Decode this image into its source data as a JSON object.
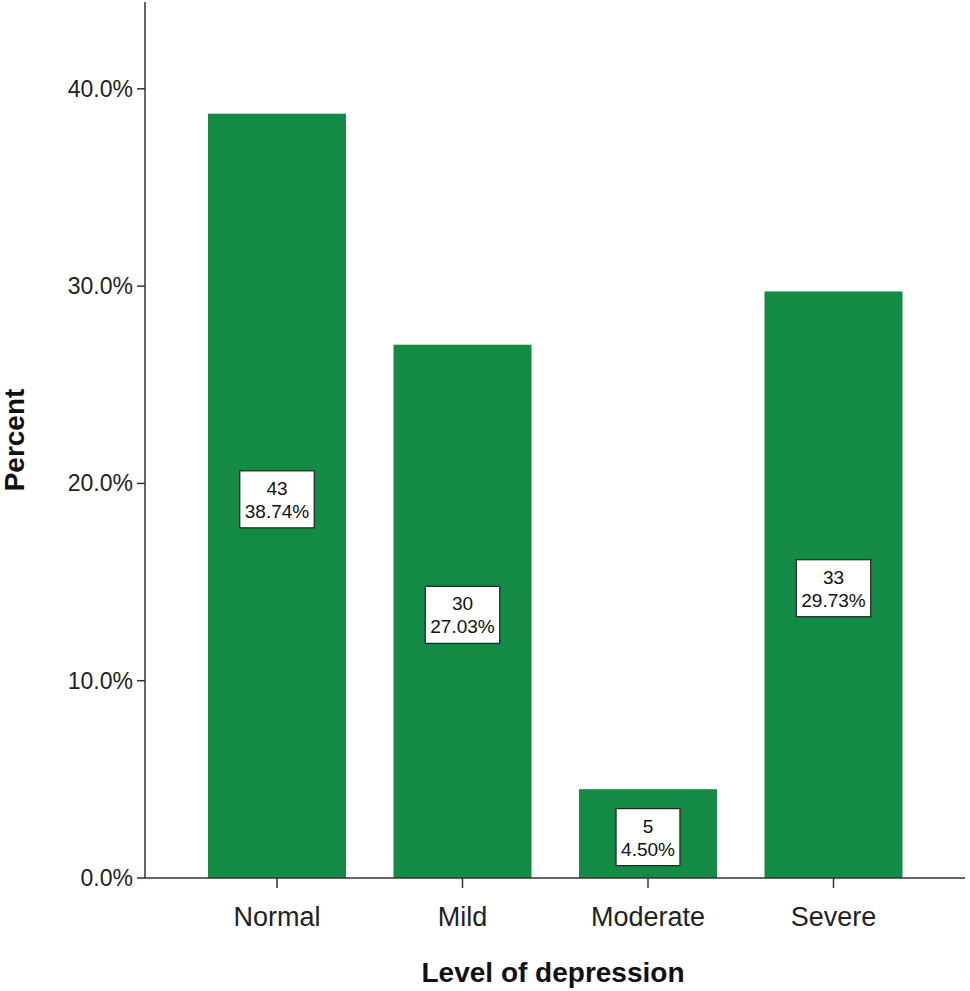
{
  "chart_data": {
    "type": "bar",
    "x_label": "Level of depression",
    "y_label": "Percent",
    "categories": [
      "Normal",
      "Mild",
      "Moderate",
      "Severe"
    ],
    "values": [
      38.74,
      27.03,
      4.5,
      29.73
    ],
    "value_labels": [
      "38.74%",
      "27.03%",
      "4.50%",
      "29.73%"
    ],
    "counts": [
      43,
      30,
      5,
      33
    ],
    "color": "#138b45",
    "ylim": [
      0,
      44.4
    ],
    "yticks": [
      {
        "value": 0,
        "label": "0.0%"
      },
      {
        "value": 10,
        "label": "10.0%"
      },
      {
        "value": 20,
        "label": "20.0%"
      },
      {
        "value": 30,
        "label": "30.0%"
      },
      {
        "value": 40,
        "label": "40.0%"
      }
    ],
    "grid": false,
    "data_labels": true
  }
}
